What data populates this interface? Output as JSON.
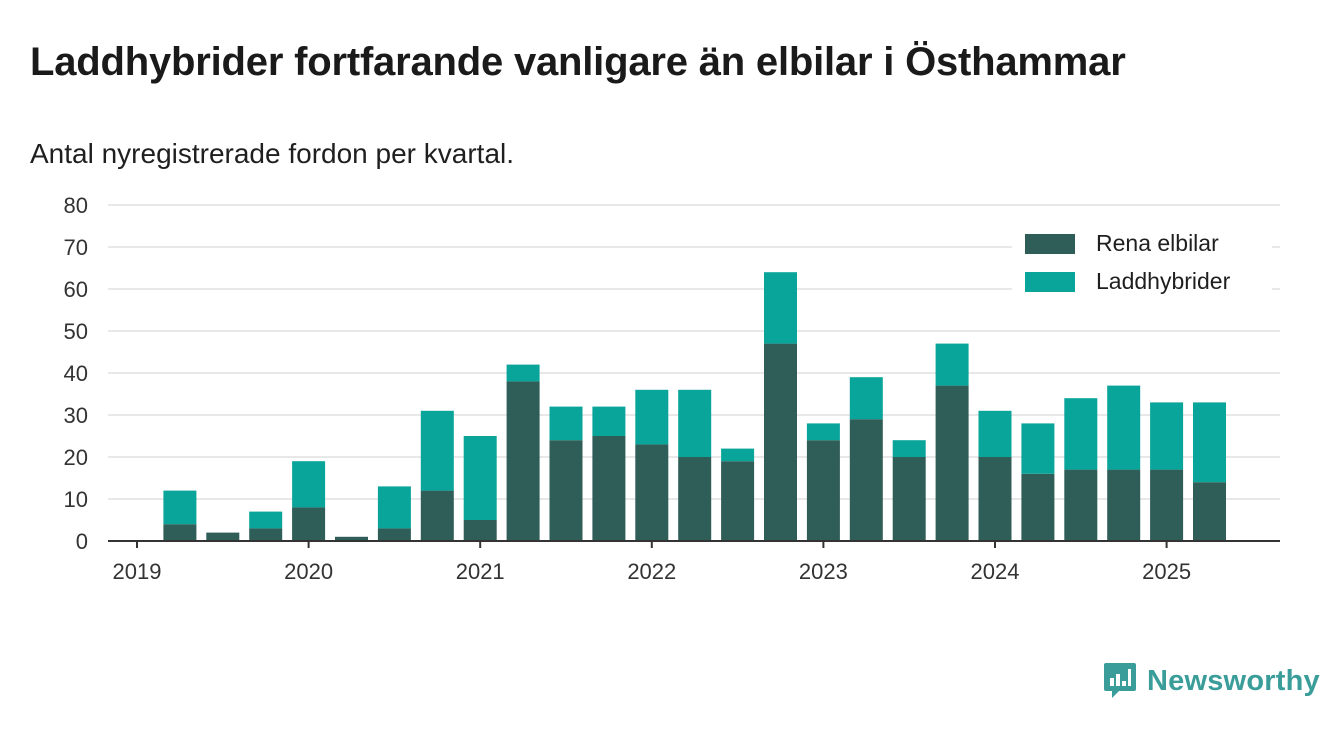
{
  "header": {
    "title": "Laddhybrider fortfarande vanligare än elbilar i Östhammar",
    "subtitle": "Antal nyregistrerade fordon per kvartal."
  },
  "brand": {
    "name": "Newsworthy",
    "color": "#3a9d99"
  },
  "colors": {
    "rena_elbilar": "#2f5d57",
    "laddhybrider": "#0aa59a",
    "grid": "#e0e0e0",
    "axis": "#333333"
  },
  "chart_data": {
    "type": "bar",
    "stacked": true,
    "categories": [
      "2019 Q1",
      "2019 Q2",
      "2019 Q3",
      "2019 Q4",
      "2020 Q1",
      "2020 Q2",
      "2020 Q3",
      "2020 Q4",
      "2021 Q1",
      "2021 Q2",
      "2021 Q3",
      "2021 Q4",
      "2022 Q1",
      "2022 Q2",
      "2022 Q3",
      "2022 Q4",
      "2023 Q1",
      "2023 Q2",
      "2023 Q3",
      "2023 Q4",
      "2024 Q1",
      "2024 Q2",
      "2024 Q3",
      "2024 Q4",
      "2025 Q1",
      "2025 Q2"
    ],
    "series": [
      {
        "name": "Rena elbilar",
        "color": "#2f5d57",
        "values": [
          0,
          4,
          2,
          3,
          8,
          1,
          3,
          12,
          5,
          38,
          24,
          25,
          23,
          20,
          19,
          47,
          24,
          29,
          20,
          37,
          20,
          16,
          17,
          17,
          17,
          14
        ]
      },
      {
        "name": "Laddhybrider",
        "color": "#0aa59a",
        "values": [
          0,
          8,
          0,
          4,
          11,
          0,
          10,
          19,
          20,
          4,
          8,
          7,
          13,
          16,
          3,
          17,
          4,
          10,
          4,
          10,
          11,
          12,
          17,
          20,
          16,
          19
        ]
      }
    ],
    "x_tick_labels": [
      "2019",
      "2020",
      "2021",
      "2022",
      "2023",
      "2024",
      "2025"
    ],
    "y_ticks": [
      0,
      10,
      20,
      30,
      40,
      50,
      60,
      70,
      80
    ],
    "ylim": [
      0,
      80
    ],
    "grid": true,
    "legend_position": "top-right"
  }
}
